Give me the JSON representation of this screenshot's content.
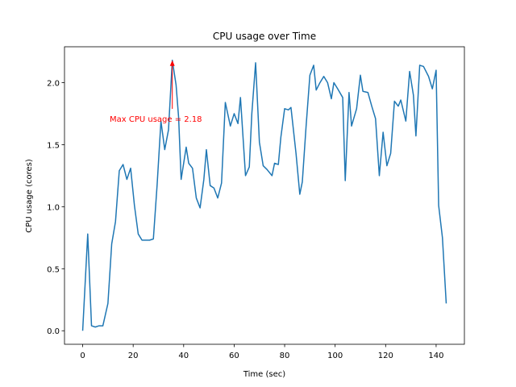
{
  "chart_data": {
    "type": "line",
    "title": "CPU usage over Time",
    "xlabel": "Time (sec)",
    "ylabel": "CPU usage (cores)",
    "annotation": "Max CPU usage = 2.18",
    "annotation_color": "#ff0000",
    "x": [
      0,
      2,
      3.5,
      5,
      6.5,
      8,
      10,
      11.5,
      13,
      14.5,
      16,
      17.5,
      19,
      20.5,
      22,
      23.5,
      25,
      26.5,
      28,
      29.5,
      31,
      32.5,
      34,
      35.5,
      37,
      38,
      39,
      41,
      42,
      43.5,
      45,
      46.5,
      48,
      49,
      50.5,
      52,
      53.5,
      55,
      56.5,
      58.5,
      60,
      61.5,
      62.5,
      64.5,
      66,
      67,
      68.5,
      70,
      71.5,
      73,
      75,
      76,
      77.5,
      78.5,
      80,
      81.5,
      82.5,
      84.5,
      86,
      87,
      88.5,
      90,
      91.5,
      92.5,
      94,
      95.5,
      97,
      98.5,
      99.5,
      101,
      103,
      104,
      105.5,
      106.5,
      108.5,
      110,
      111,
      113,
      114.5,
      116,
      117.5,
      119,
      120.5,
      122,
      123.5,
      125,
      126,
      128,
      129.5,
      131,
      132,
      133.5,
      135,
      137,
      138.5,
      140,
      141,
      142.5,
      144
    ],
    "series": [
      {
        "name": "CPU usage",
        "color": "#1f77b4",
        "values": [
          0,
          0.78,
          0.04,
          0.03,
          0.04,
          0.04,
          0.22,
          0.7,
          0.88,
          1.29,
          1.34,
          1.22,
          1.31,
          1.01,
          0.78,
          0.73,
          0.73,
          0.73,
          0.74,
          1.18,
          1.69,
          1.46,
          1.62,
          2.18,
          1.98,
          1.72,
          1.22,
          1.48,
          1.35,
          1.31,
          1.07,
          0.99,
          1.22,
          1.46,
          1.17,
          1.15,
          1.07,
          1.19,
          1.84,
          1.65,
          1.75,
          1.67,
          1.88,
          1.25,
          1.32,
          1.75,
          2.16,
          1.52,
          1.33,
          1.3,
          1.25,
          1.35,
          1.34,
          1.56,
          1.79,
          1.78,
          1.8,
          1.43,
          1.1,
          1.2,
          1.65,
          2.06,
          2.14,
          1.94,
          2,
          2.05,
          2,
          1.87,
          2,
          1.95,
          1.88,
          1.21,
          1.92,
          1.65,
          1.79,
          2.06,
          1.93,
          1.92,
          1.81,
          1.71,
          1.25,
          1.6,
          1.33,
          1.43,
          1.85,
          1.81,
          1.86,
          1.69,
          2.09,
          1.9,
          1.57,
          2.14,
          2.13,
          2.05,
          1.95,
          2.1,
          1.01,
          0.75,
          0.22
        ]
      }
    ],
    "xlim": [
      -7.2,
      151.2
    ],
    "xticks": [
      0,
      20,
      40,
      60,
      80,
      100,
      120,
      140
    ],
    "ylim": [
      -0.109,
      2.289
    ],
    "yticks": [
      {
        "value": 0,
        "label": "0.0"
      },
      {
        "value": 0.5,
        "label": "0.5"
      },
      {
        "value": 1,
        "label": "1.0"
      },
      {
        "value": 1.5,
        "label": "1.5"
      },
      {
        "value": 2,
        "label": "2.0"
      }
    ]
  }
}
